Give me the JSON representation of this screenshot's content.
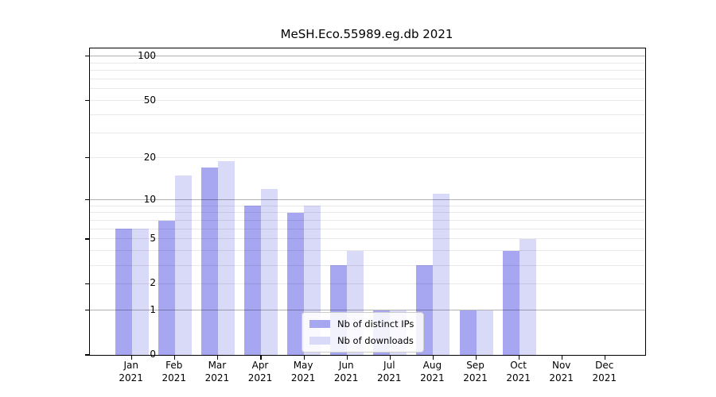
{
  "chart_data": {
    "type": "bar",
    "title": "MeSH.Eco.55989.eg.db 2021",
    "categories": [
      "Jan",
      "Feb",
      "Mar",
      "Apr",
      "May",
      "Jun",
      "Jul",
      "Aug",
      "Sep",
      "Oct",
      "Nov",
      "Dec"
    ],
    "category_year": "2021",
    "series": [
      {
        "name": "Nb of distinct IPs",
        "color": "#a6a6f1",
        "values": [
          6,
          7,
          17,
          9,
          8,
          3,
          1,
          3,
          1,
          4,
          0,
          0
        ]
      },
      {
        "name": "Nb of downloads",
        "color": "#d9d9f8",
        "values": [
          6,
          15,
          19,
          12,
          9,
          4,
          1,
          11,
          1,
          5,
          0,
          0
        ]
      }
    ],
    "yscale": "log1p",
    "ylim": [
      0,
      113
    ],
    "ytick_values": [
      0,
      1,
      2,
      5,
      10,
      20,
      50,
      100
    ],
    "grid_major": [
      1,
      10,
      100
    ],
    "grid_minor": [
      2,
      3,
      4,
      5,
      6,
      7,
      8,
      9,
      20,
      30,
      40,
      50,
      60,
      70,
      80,
      90
    ],
    "xlabel": "",
    "ylabel": "",
    "grid": true,
    "legend_position": "lower-center",
    "colors": {
      "axis": "#000000",
      "background": "#ffffff",
      "grid_major": "rgba(0,0,0,0.30)",
      "grid_minor": "rgba(0,0,0,0.085)"
    }
  }
}
